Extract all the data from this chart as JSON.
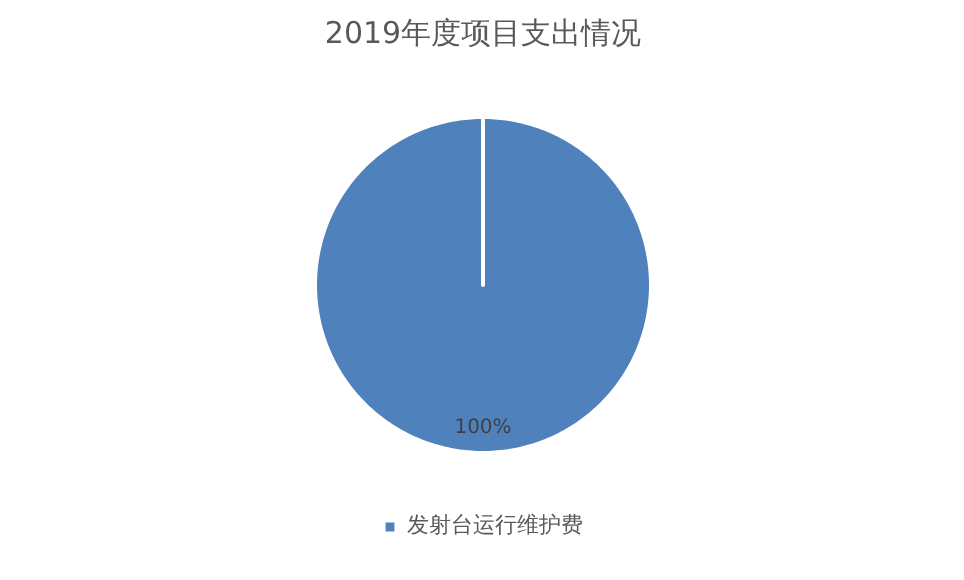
{
  "chart_data": {
    "type": "pie",
    "title": "2019年度项目支出情况",
    "categories": [
      "发射台运行维护费"
    ],
    "values": [
      100
    ],
    "colors": [
      "#4f81bd"
    ],
    "value_labels": [
      "100%"
    ],
    "legend": "bottom"
  }
}
